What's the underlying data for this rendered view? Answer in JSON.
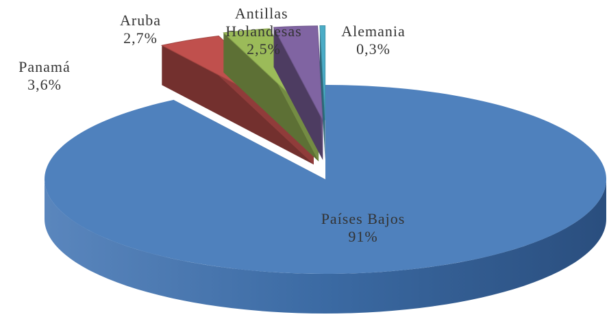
{
  "chart_data": {
    "type": "pie3d",
    "categories": [
      "Países Bajos",
      "Panamá",
      "Aruba",
      "Antillas Holandesas",
      "Alemania"
    ],
    "values": [
      91,
      3.6,
      2.7,
      2.5,
      0.3
    ],
    "value_labels": [
      "91%",
      "3,6%",
      "2,7%",
      "2,5%",
      "0,3%"
    ],
    "colors": [
      "#4f81bd",
      "#c0504d",
      "#9bbb59",
      "#8064a2",
      "#4bacc6"
    ]
  }
}
